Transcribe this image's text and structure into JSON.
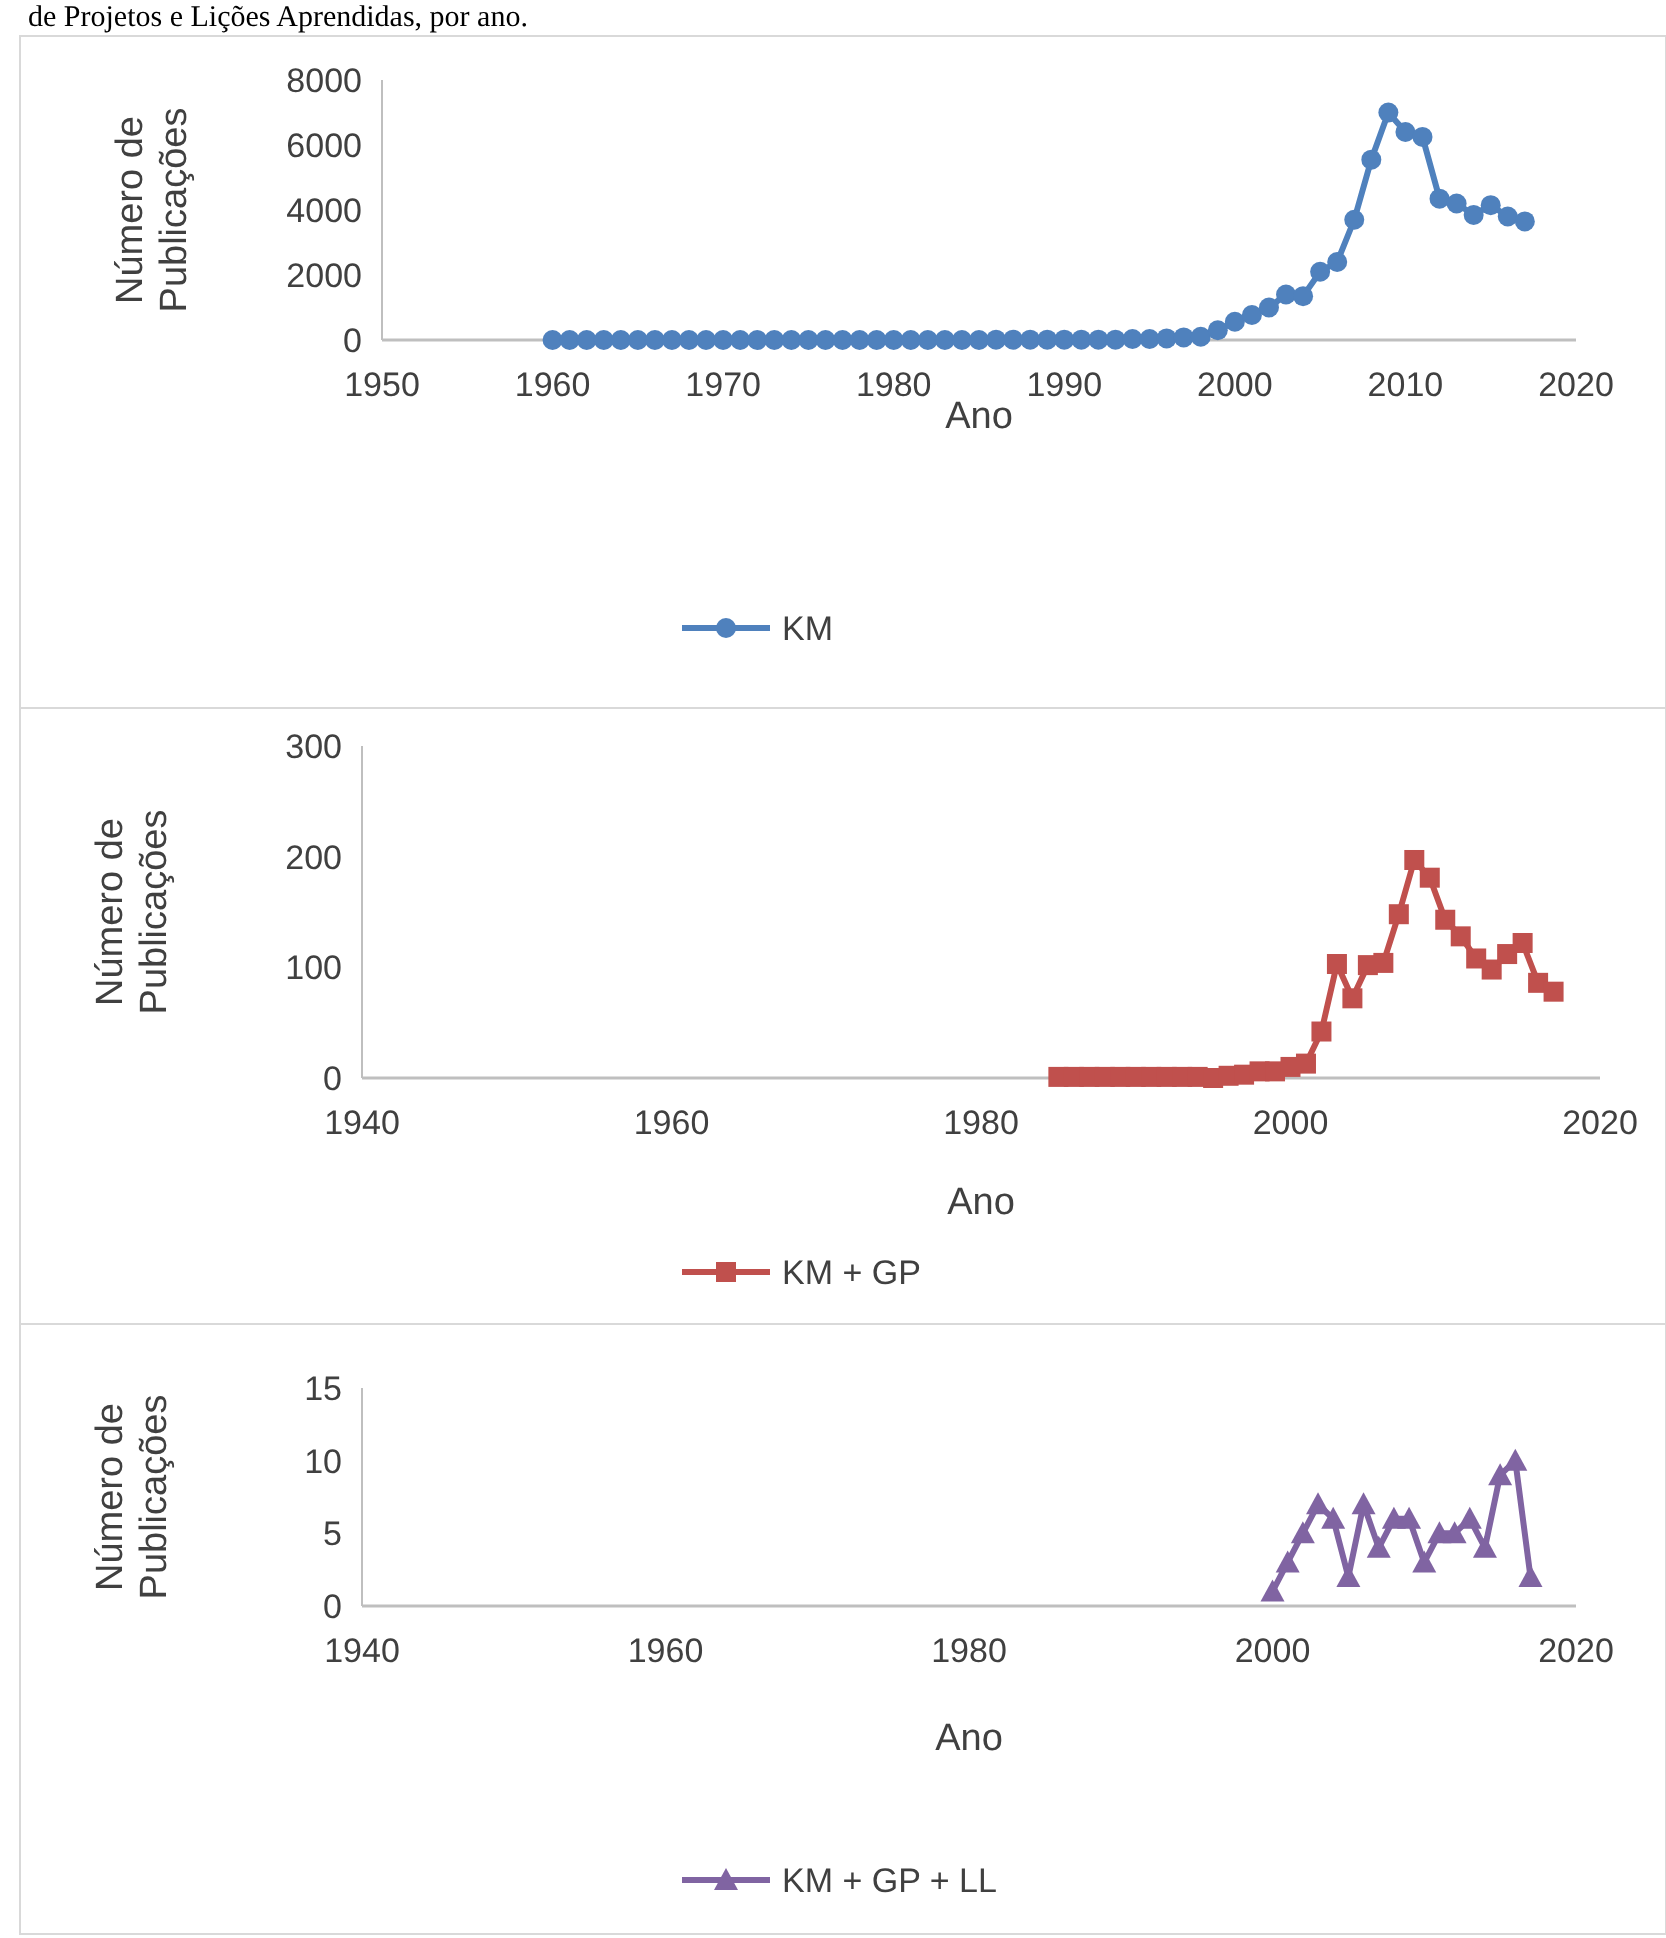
{
  "chart_data": [
    {
      "type": "line",
      "annotations": [
        "de Projetos e Lições Aprendidas, por ano."
      ],
      "xlabel": "Ano",
      "ylabel": "Número de Publicações",
      "x": [
        1960,
        1961,
        1962,
        1963,
        1964,
        1965,
        1966,
        1967,
        1968,
        1969,
        1970,
        1971,
        1972,
        1973,
        1974,
        1975,
        1976,
        1977,
        1978,
        1979,
        1980,
        1981,
        1982,
        1983,
        1984,
        1985,
        1986,
        1987,
        1988,
        1989,
        1990,
        1991,
        1992,
        1993,
        1994,
        1995,
        1996,
        1997,
        1998,
        1999,
        2000,
        2001,
        2002,
        2003,
        2004,
        2005,
        2006,
        2007,
        2008,
        2009,
        2010,
        2011,
        2012,
        2013,
        2014,
        2015,
        2016,
        2017
      ],
      "series": [
        {
          "name": "KM",
          "color": "#4f81bd",
          "values": [
            0,
            0,
            0,
            0,
            0,
            0,
            0,
            0,
            0,
            0,
            0,
            0,
            0,
            0,
            0,
            0,
            0,
            0,
            0,
            0,
            0,
            0,
            0,
            0,
            0,
            0,
            10,
            10,
            10,
            10,
            10,
            10,
            10,
            10,
            30,
            30,
            50,
            80,
            100,
            300,
            560,
            770,
            1000,
            1400,
            1350,
            2100,
            2400,
            3700,
            5550,
            7000,
            6400,
            6250,
            4350,
            4200,
            3850,
            4150,
            3800,
            3650
          ]
        }
      ],
      "xlim": [
        1950,
        2020
      ],
      "xticks": [
        1950,
        1960,
        1970,
        1980,
        1990,
        2000,
        2010,
        2020
      ],
      "ylim": [
        0,
        8000
      ],
      "yticks": [
        0,
        2000,
        4000,
        6000,
        8000
      ],
      "grid": false,
      "legend": "bottom",
      "marker": "circle",
      "line_style": "solid"
    },
    {
      "type": "line",
      "xlabel": "Ano",
      "ylabel": "Número de Publicações",
      "x": [
        1985,
        1986,
        1987,
        1988,
        1989,
        1990,
        1991,
        1992,
        1993,
        1994,
        1995,
        1996,
        1997,
        1998,
        1999,
        2000,
        2001,
        2002,
        2003,
        2004,
        2005,
        2006,
        2007,
        2008,
        2009,
        2010,
        2011,
        2012,
        2013,
        2014,
        2015,
        2016,
        2017
      ],
      "series": [
        {
          "name": "KM + GP",
          "color": "#c0504d",
          "values": [
            1,
            1,
            1,
            1,
            1,
            1,
            1,
            1,
            1,
            1,
            0,
            2,
            3,
            6,
            6,
            10,
            13,
            42,
            103,
            72,
            102,
            104,
            148,
            197,
            181,
            143,
            128,
            108,
            98,
            112,
            122,
            86,
            78
          ]
        }
      ],
      "xlim": [
        1940,
        2020
      ],
      "xticks": [
        1940,
        1960,
        1980,
        2000,
        2020
      ],
      "ylim": [
        0,
        300
      ],
      "yticks": [
        0,
        100,
        200,
        300
      ],
      "grid": false,
      "legend": "bottom",
      "marker": "square",
      "line_style": "solid"
    },
    {
      "type": "line",
      "xlabel": "Ano",
      "ylabel": "Número de Publicações",
      "x": [
        2000,
        2001,
        2002,
        2003,
        2004,
        2005,
        2006,
        2007,
        2008,
        2009,
        2010,
        2011,
        2012,
        2013,
        2014,
        2015,
        2016,
        2017
      ],
      "series": [
        {
          "name": "KM + GP + LL",
          "color": "#8064a2",
          "values": [
            1,
            3,
            5,
            7,
            6,
            2,
            7,
            4,
            6,
            6,
            3,
            5,
            5,
            6,
            4,
            9,
            10,
            2
          ]
        }
      ],
      "xlim": [
        1940,
        2020
      ],
      "xticks": [
        1940,
        1960,
        1980,
        2000,
        2020
      ],
      "ylim": [
        0,
        15
      ],
      "yticks": [
        0,
        5,
        10,
        15
      ],
      "grid": false,
      "legend": "bottom",
      "marker": "triangle",
      "line_style": "solid"
    }
  ]
}
